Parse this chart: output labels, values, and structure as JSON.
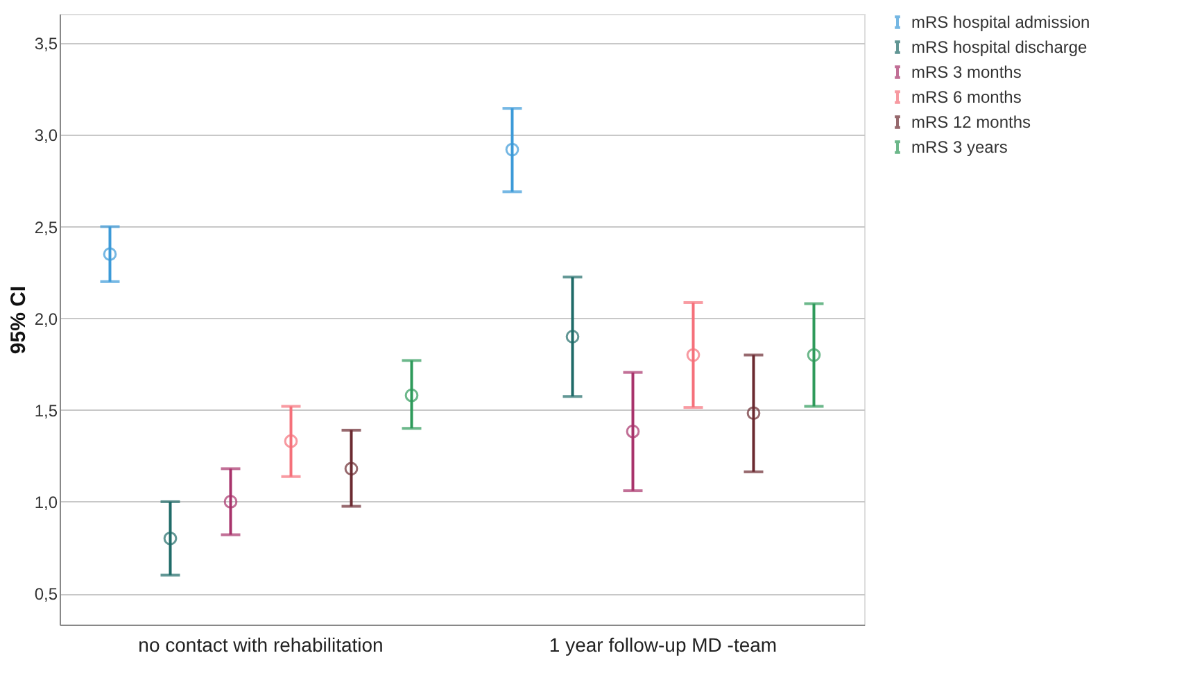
{
  "chart_data": {
    "type": "scatter",
    "ylabel": "95% CI",
    "categories": [
      "no contact with rehabilitation",
      "1 year follow-up MD -team"
    ],
    "ylim": [
      0.33,
      3.66
    ],
    "yticks": [
      {
        "value": 0.5,
        "label": "0,5"
      },
      {
        "value": 1.0,
        "label": "1,0"
      },
      {
        "value": 1.5,
        "label": "1,5"
      },
      {
        "value": 2.0,
        "label": "2,0"
      },
      {
        "value": 2.5,
        "label": "2,5"
      },
      {
        "value": 3.0,
        "label": "3,0"
      },
      {
        "value": 3.5,
        "label": "3,5"
      }
    ],
    "grid": "y",
    "legend": "top right",
    "marker": "circle",
    "series": [
      {
        "name": "mRS hospital admission",
        "color": "#3c9ad8",
        "values": [
          2.35,
          2.92
        ],
        "errors": [
          [
            2.2,
            2.5
          ],
          [
            2.69,
            3.145
          ]
        ]
      },
      {
        "name": "mRS hospital discharge",
        "color": "#1f6b68",
        "values": [
          0.8,
          1.9
        ],
        "errors": [
          [
            0.6,
            1.0
          ],
          [
            1.574,
            2.225
          ]
        ]
      },
      {
        "name": "mRS 3 months",
        "color": "#a8336b",
        "values": [
          1.0,
          1.383
        ],
        "errors": [
          [
            0.82,
            1.18
          ],
          [
            1.06,
            1.705
          ]
        ]
      },
      {
        "name": "mRS 6 months",
        "color": "#f5707a",
        "values": [
          1.33,
          1.8
        ],
        "errors": [
          [
            1.137,
            1.52
          ],
          [
            1.514,
            2.086
          ]
        ]
      },
      {
        "name": "mRS 12 months",
        "color": "#6b2a30",
        "values": [
          1.18,
          1.483
        ],
        "errors": [
          [
            0.975,
            1.39
          ],
          [
            1.163,
            1.8
          ]
        ]
      },
      {
        "name": "mRS  3 years",
        "color": "#2e9a5a",
        "values": [
          1.58,
          1.8
        ],
        "errors": [
          [
            1.4,
            1.77
          ],
          [
            1.52,
            2.08
          ]
        ]
      }
    ]
  }
}
